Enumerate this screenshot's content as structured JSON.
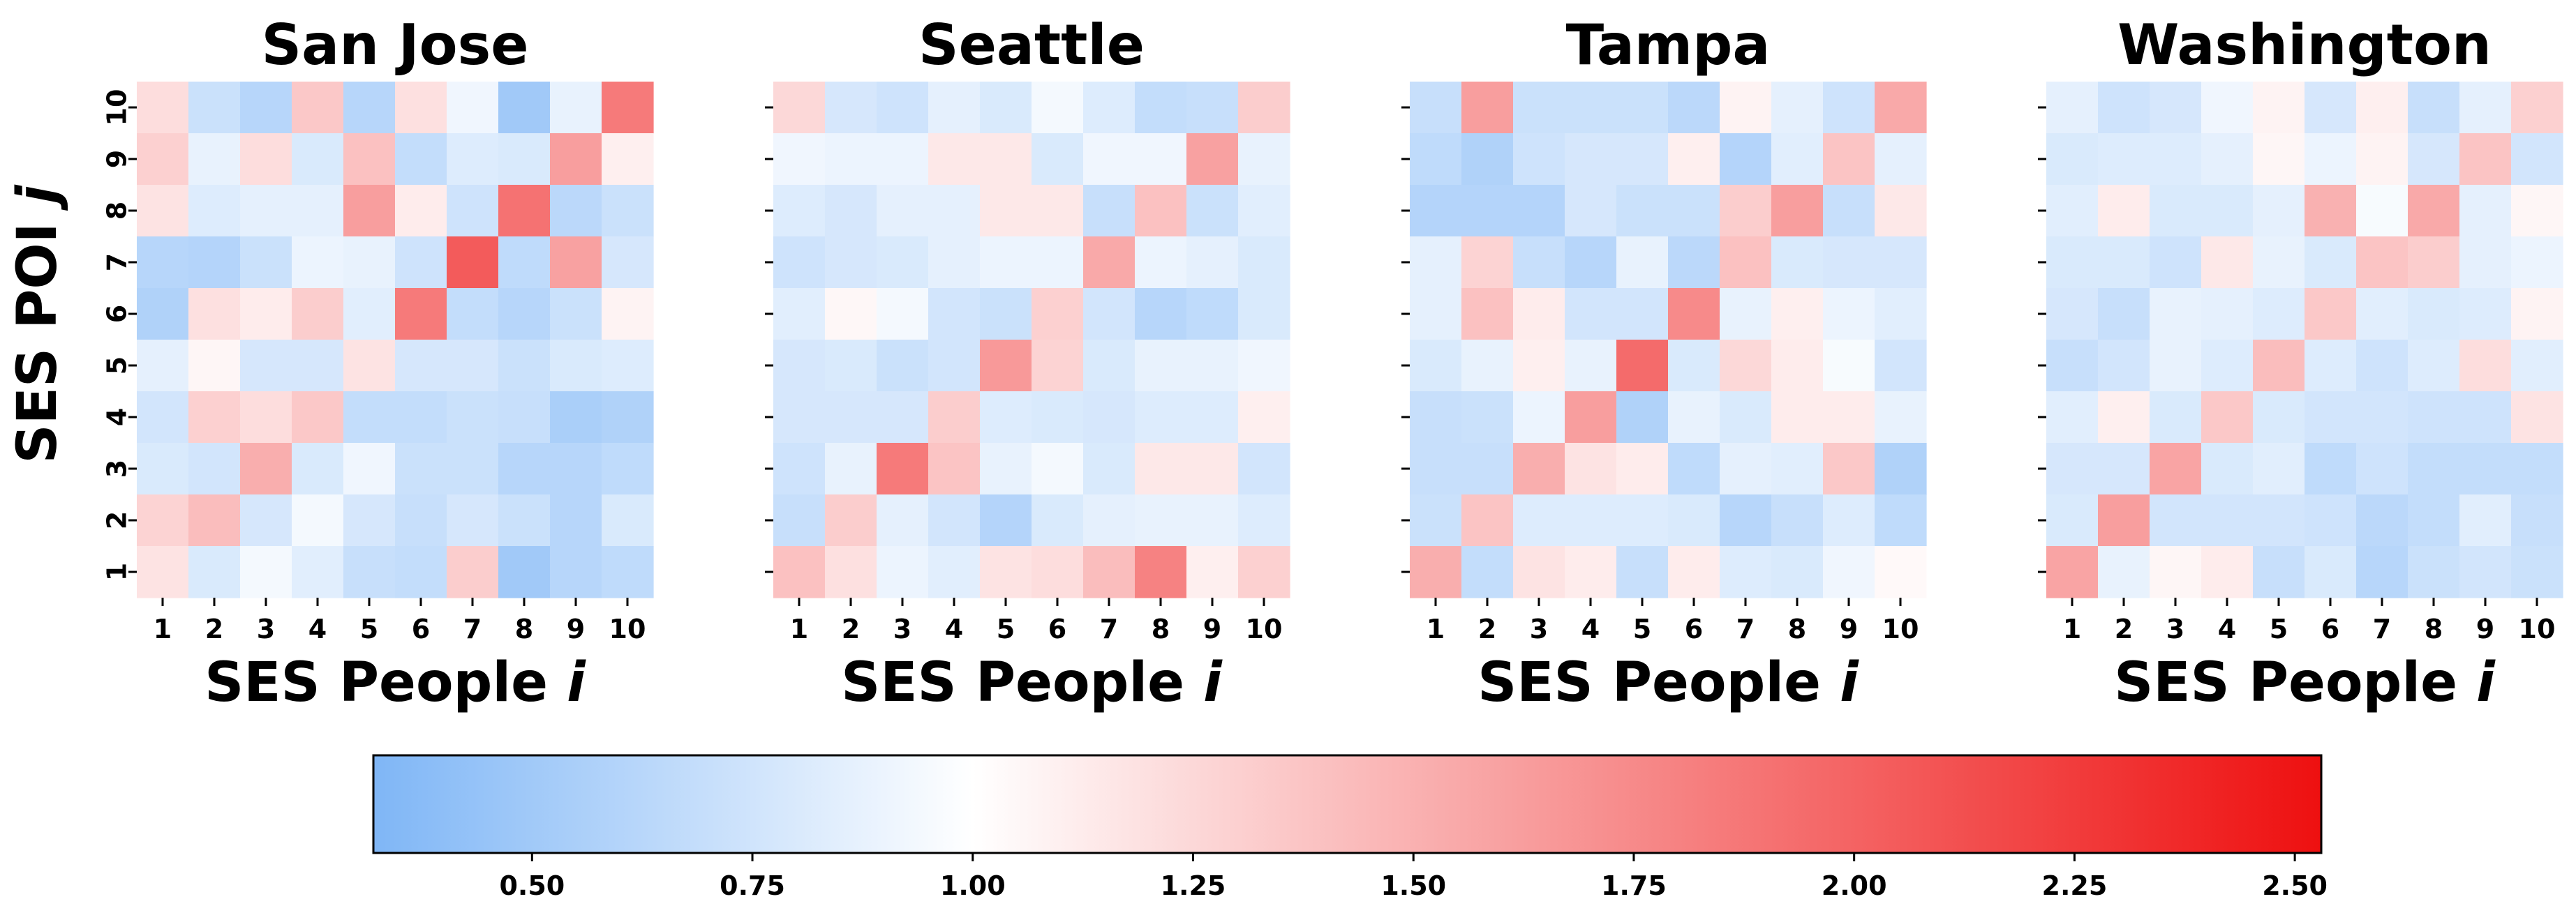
{
  "chart_data": {
    "type": "heatmap",
    "shared_ylabel": "SES POI",
    "shared_ylabel_var": "j",
    "colorbar": {
      "min": 0.32,
      "center": 1.0,
      "max": 2.53,
      "ticks": [
        0.5,
        0.75,
        1.0,
        1.25,
        1.5,
        1.75,
        2.0,
        2.25,
        2.5
      ],
      "tick_labels": [
        "0.50",
        "0.75",
        "1.00",
        "1.25",
        "1.50",
        "1.75",
        "2.00",
        "2.25",
        "2.50"
      ],
      "colors": {
        "low": "#7fb6f6",
        "mid": "#ffffff",
        "high": "#ee1010"
      }
    },
    "x_tick_labels": [
      "1",
      "2",
      "3",
      "4",
      "5",
      "6",
      "7",
      "8",
      "9",
      "10"
    ],
    "y_tick_labels": [
      "1",
      "2",
      "3",
      "4",
      "5",
      "6",
      "7",
      "8",
      "9",
      "10"
    ],
    "panels": [
      {
        "title": "San Jose",
        "xlabel": "SES People",
        "xlabel_var": "i",
        "matrix_rows_j10_to_j1": [
          [
            1.22,
            0.72,
            0.62,
            1.35,
            0.62,
            1.2,
            0.92,
            0.5,
            0.88,
            1.85
          ],
          [
            1.3,
            0.88,
            1.22,
            0.8,
            1.4,
            0.68,
            0.82,
            0.8,
            1.62,
            1.1
          ],
          [
            1.18,
            0.82,
            0.86,
            0.86,
            1.62,
            1.12,
            0.74,
            1.9,
            0.64,
            0.72
          ],
          [
            0.62,
            0.6,
            0.72,
            0.9,
            0.88,
            0.74,
            2.05,
            0.66,
            1.6,
            0.78
          ],
          [
            0.58,
            1.2,
            1.12,
            1.32,
            0.84,
            1.85,
            0.68,
            0.62,
            0.72,
            1.08
          ],
          [
            0.86,
            1.06,
            0.78,
            0.78,
            1.18,
            0.78,
            0.78,
            0.72,
            0.8,
            0.82
          ],
          [
            0.76,
            1.3,
            1.22,
            1.35,
            0.68,
            0.68,
            0.72,
            0.7,
            0.55,
            0.58
          ],
          [
            0.8,
            0.76,
            1.52,
            0.8,
            0.92,
            0.72,
            0.72,
            0.62,
            0.62,
            0.66
          ],
          [
            1.28,
            1.42,
            0.78,
            0.94,
            0.78,
            0.7,
            0.78,
            0.72,
            0.62,
            0.8
          ],
          [
            1.18,
            0.8,
            0.94,
            0.84,
            0.7,
            0.68,
            1.32,
            0.5,
            0.62,
            0.66
          ]
        ]
      },
      {
        "title": "Seattle",
        "xlabel": "SES People",
        "xlabel_var": "i",
        "matrix_rows_j10_to_j1": [
          [
            1.25,
            0.78,
            0.74,
            0.86,
            0.8,
            0.94,
            0.82,
            0.68,
            0.7,
            1.32
          ],
          [
            0.92,
            0.9,
            0.9,
            1.15,
            1.15,
            0.8,
            0.92,
            0.92,
            1.6,
            0.88
          ],
          [
            0.82,
            0.78,
            0.86,
            0.86,
            1.15,
            1.15,
            0.7,
            1.4,
            0.72,
            0.84
          ],
          [
            0.74,
            0.78,
            0.8,
            0.86,
            0.9,
            0.9,
            1.55,
            0.9,
            0.86,
            0.8
          ],
          [
            0.84,
            1.05,
            0.94,
            0.76,
            0.72,
            1.3,
            0.76,
            0.62,
            0.66,
            0.8
          ],
          [
            0.78,
            0.8,
            0.72,
            0.76,
            1.65,
            1.28,
            0.8,
            0.88,
            0.88,
            0.92
          ],
          [
            0.78,
            0.78,
            0.78,
            1.32,
            0.82,
            0.8,
            0.78,
            0.82,
            0.82,
            1.1
          ],
          [
            0.74,
            0.88,
            1.85,
            1.38,
            0.88,
            0.94,
            0.8,
            1.15,
            1.15,
            0.76
          ],
          [
            0.7,
            1.32,
            0.86,
            0.76,
            0.6,
            0.8,
            0.86,
            0.88,
            0.88,
            0.82
          ],
          [
            1.4,
            1.2,
            0.9,
            0.84,
            1.18,
            1.22,
            1.42,
            1.8,
            1.1,
            1.3
          ]
        ]
      },
      {
        "title": "Tampa",
        "xlabel": "SES People",
        "xlabel_var": "i",
        "matrix_rows_j10_to_j1": [
          [
            0.7,
            1.62,
            0.72,
            0.72,
            0.72,
            0.64,
            1.08,
            0.86,
            0.74,
            1.55
          ],
          [
            0.66,
            0.58,
            0.74,
            0.78,
            0.78,
            1.1,
            0.6,
            0.84,
            1.38,
            0.86
          ],
          [
            0.6,
            0.6,
            0.6,
            0.78,
            0.72,
            0.72,
            1.32,
            1.62,
            0.7,
            1.15
          ],
          [
            0.86,
            1.28,
            0.7,
            0.62,
            0.88,
            0.64,
            1.4,
            0.8,
            0.78,
            0.78
          ],
          [
            0.86,
            1.4,
            1.12,
            0.76,
            0.76,
            1.75,
            0.88,
            1.1,
            0.9,
            0.84
          ],
          [
            0.8,
            0.88,
            1.1,
            0.88,
            1.95,
            0.8,
            1.25,
            1.12,
            0.96,
            0.76
          ],
          [
            0.7,
            0.72,
            0.9,
            1.62,
            0.58,
            0.88,
            0.8,
            1.12,
            1.12,
            0.88
          ],
          [
            0.7,
            0.7,
            1.52,
            1.18,
            1.12,
            0.66,
            0.86,
            0.84,
            1.35,
            0.58
          ],
          [
            0.72,
            1.38,
            0.82,
            0.82,
            0.82,
            0.8,
            0.62,
            0.7,
            0.82,
            0.66
          ],
          [
            1.52,
            0.68,
            1.18,
            1.12,
            0.7,
            1.12,
            0.82,
            0.8,
            0.92,
            1.04
          ]
        ]
      },
      {
        "title": "Washington",
        "xlabel": "SES People",
        "xlabel_var": "i",
        "matrix_rows_j10_to_j1": [
          [
            0.86,
            0.74,
            0.78,
            0.92,
            1.08,
            0.78,
            1.1,
            0.7,
            0.86,
            1.3
          ],
          [
            0.8,
            0.82,
            0.82,
            0.86,
            1.06,
            0.9,
            1.08,
            0.78,
            1.38,
            0.76
          ],
          [
            0.84,
            1.12,
            0.8,
            0.8,
            0.86,
            1.5,
            0.96,
            1.55,
            0.86,
            1.06
          ],
          [
            0.8,
            0.8,
            0.74,
            1.15,
            0.88,
            0.8,
            1.38,
            1.32,
            0.86,
            0.9
          ],
          [
            0.78,
            0.7,
            0.88,
            0.86,
            0.82,
            1.35,
            0.84,
            0.8,
            0.82,
            1.08
          ],
          [
            0.7,
            0.76,
            0.88,
            0.82,
            1.42,
            0.82,
            0.74,
            0.82,
            1.22,
            0.84
          ],
          [
            0.84,
            1.1,
            0.8,
            1.35,
            0.8,
            0.76,
            0.76,
            0.74,
            0.74,
            1.18
          ],
          [
            0.78,
            0.78,
            1.58,
            0.8,
            0.84,
            0.66,
            0.74,
            0.68,
            0.68,
            0.68
          ],
          [
            0.8,
            1.62,
            0.76,
            0.76,
            0.76,
            0.74,
            0.64,
            0.68,
            0.84,
            0.7
          ],
          [
            1.58,
            0.88,
            1.06,
            1.12,
            0.7,
            0.8,
            0.62,
            0.72,
            0.76,
            0.72
          ]
        ]
      }
    ]
  }
}
